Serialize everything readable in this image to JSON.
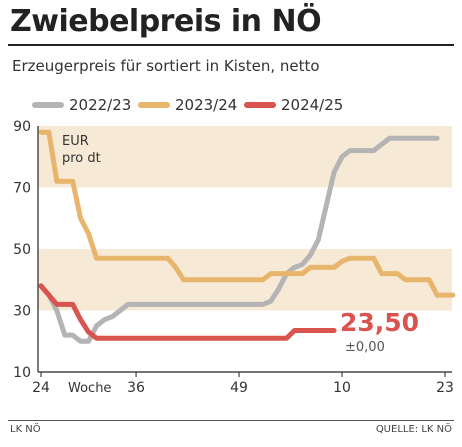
{
  "header": {
    "title": "Zwiebelpreis in NÖ",
    "subtitle": "Erzeugerpreis für sortiert in Kisten, netto"
  },
  "unit_label_line1": "EUR",
  "unit_label_line2": "pro dt",
  "current": {
    "value_label": "23,50",
    "change_label": "±0,00",
    "color": "#d9534f"
  },
  "footer": {
    "source_left": "LK NÖ",
    "source_right": "QUELLE: LK NÖ"
  },
  "chart_data": {
    "type": "line",
    "x_unit": "Woche",
    "x_ticks": [
      "24",
      "36",
      "49",
      "10",
      "23"
    ],
    "x_tick_weeks": [
      0,
      12,
      25,
      38,
      51
    ],
    "x_axis_label": "Woche",
    "ylim": [
      10,
      90
    ],
    "y_ticks": [
      10,
      30,
      50,
      70,
      90
    ],
    "bands": [
      [
        30,
        50
      ],
      [
        70,
        90
      ]
    ],
    "band_color": "#f6ead6",
    "series": [
      {
        "name": "2022/23",
        "color": "#b4b4b4",
        "x": [
          0,
          1,
          2,
          3,
          4,
          5,
          6,
          7,
          8,
          9,
          10,
          11,
          12,
          13,
          14,
          15,
          16,
          17,
          18,
          19,
          20,
          21,
          22,
          23,
          24,
          25,
          26,
          27,
          28,
          29,
          30,
          31,
          32,
          33,
          34,
          35,
          36,
          37,
          38,
          39,
          40,
          41,
          42,
          43,
          44,
          45,
          46,
          47,
          48,
          49,
          50
        ],
        "y": [
          38,
          35,
          30,
          22,
          22,
          20,
          20,
          25,
          27,
          28,
          30,
          32,
          32,
          32,
          32,
          32,
          32,
          32,
          32,
          32,
          32,
          32,
          32,
          32,
          32,
          32,
          32,
          32,
          32,
          33,
          37,
          42,
          44,
          45,
          48,
          53,
          64,
          75,
          80,
          82,
          82,
          82,
          82,
          84,
          86,
          86,
          86,
          86,
          86,
          86,
          86
        ]
      },
      {
        "name": "2023/24",
        "color": "#e8b56c",
        "x": [
          0,
          1,
          2,
          3,
          4,
          5,
          6,
          7,
          8,
          9,
          10,
          11,
          12,
          13,
          14,
          15,
          16,
          17,
          18,
          19,
          20,
          21,
          22,
          23,
          24,
          25,
          26,
          27,
          28,
          29,
          30,
          31,
          32,
          33,
          34,
          35,
          36,
          37,
          38,
          39,
          40,
          41,
          42,
          43,
          44,
          45,
          46,
          47,
          48,
          49,
          50,
          51,
          52
        ],
        "y": [
          88,
          88,
          72,
          72,
          72,
          60,
          55,
          47,
          47,
          47,
          47,
          47,
          47,
          47,
          47,
          47,
          47,
          44,
          40,
          40,
          40,
          40,
          40,
          40,
          40,
          40,
          40,
          40,
          40,
          42,
          42,
          42,
          42,
          42,
          44,
          44,
          44,
          44,
          46,
          47,
          47,
          47,
          47,
          42,
          42,
          42,
          40,
          40,
          40,
          40,
          35,
          35,
          35
        ]
      },
      {
        "name": "2024/25",
        "color": "#d9534f",
        "x": [
          0,
          1,
          2,
          3,
          4,
          5,
          6,
          7,
          8,
          9,
          10,
          11,
          12,
          13,
          14,
          15,
          16,
          17,
          18,
          19,
          20,
          21,
          22,
          23,
          24,
          25,
          26,
          27,
          28,
          29,
          30,
          31,
          32,
          33,
          34,
          35,
          36,
          37
        ],
        "y": [
          38,
          35,
          32,
          32,
          32,
          27,
          23,
          21,
          21,
          21,
          21,
          21,
          21,
          21,
          21,
          21,
          21,
          21,
          21,
          21,
          21,
          21,
          21,
          21,
          21,
          21,
          21,
          21,
          21,
          21,
          21,
          21,
          23.5,
          23.5,
          23.5,
          23.5,
          23.5,
          23.5
        ]
      }
    ]
  }
}
